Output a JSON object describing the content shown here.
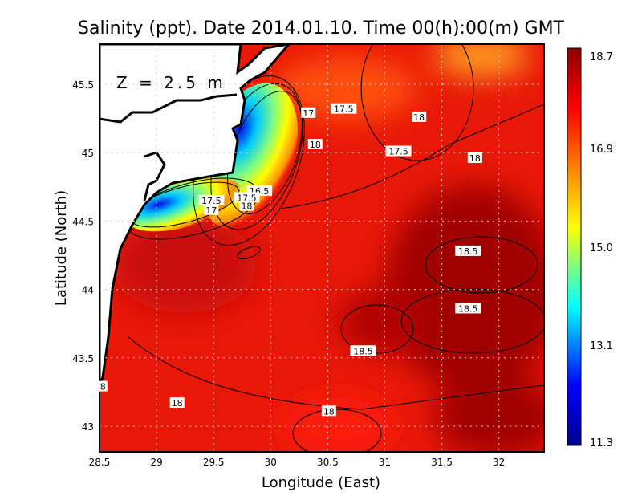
{
  "chart_data": {
    "type": "heatmap",
    "title": "Salinity (ppt). Date 2014.01.10. Time 00(h):00(m) GMT",
    "annotation": "Z = 2.5 m",
    "xlabel": "Longitude (East)",
    "ylabel": "Latitude (North)",
    "xlim": [
      28.5,
      32.4
    ],
    "ylim": [
      42.8,
      45.8
    ],
    "xticks": [
      "28.5",
      "29",
      "29.5",
      "30",
      "30.5",
      "31",
      "31.5",
      "32"
    ],
    "yticks": [
      "43",
      "43.5",
      "44",
      "44.5",
      "45",
      "45.5"
    ],
    "grid": true,
    "colorbar": {
      "range": [
        11.3,
        18.7
      ],
      "ticks": [
        "18.7",
        "16.9",
        "15.0",
        "13.1",
        "11.3"
      ],
      "colormap": [
        "#00008b",
        "#0000ff",
        "#00ffff",
        "#ffff00",
        "#ff8000",
        "#ff0000",
        "#8b0000"
      ]
    },
    "contour_labels": [
      {
        "text": "17",
        "lon": 30.33,
        "lat": 45.29
      },
      {
        "text": "17.5",
        "lon": 30.64,
        "lat": 45.32
      },
      {
        "text": "18",
        "lon": 31.3,
        "lat": 45.26
      },
      {
        "text": "18",
        "lon": 30.39,
        "lat": 45.06
      },
      {
        "text": "17.5",
        "lon": 31.12,
        "lat": 45.01
      },
      {
        "text": "18",
        "lon": 31.79,
        "lat": 44.96
      },
      {
        "text": "16.5",
        "lon": 29.9,
        "lat": 44.72
      },
      {
        "text": "17.5",
        "lon": 29.79,
        "lat": 44.67
      },
      {
        "text": "18",
        "lon": 29.79,
        "lat": 44.61
      },
      {
        "text": "17.5",
        "lon": 29.48,
        "lat": 44.65
      },
      {
        "text": "17",
        "lon": 29.48,
        "lat": 44.58
      },
      {
        "text": "18.5",
        "lon": 31.73,
        "lat": 44.28
      },
      {
        "text": "18.5",
        "lon": 31.73,
        "lat": 43.86
      },
      {
        "text": "18.5",
        "lon": 30.81,
        "lat": 43.55
      },
      {
        "text": "18",
        "lon": 29.18,
        "lat": 43.17
      },
      {
        "text": "18",
        "lon": 30.51,
        "lat": 43.11
      },
      {
        "text": "8",
        "lon": 28.53,
        "lat": 43.29
      }
    ]
  }
}
